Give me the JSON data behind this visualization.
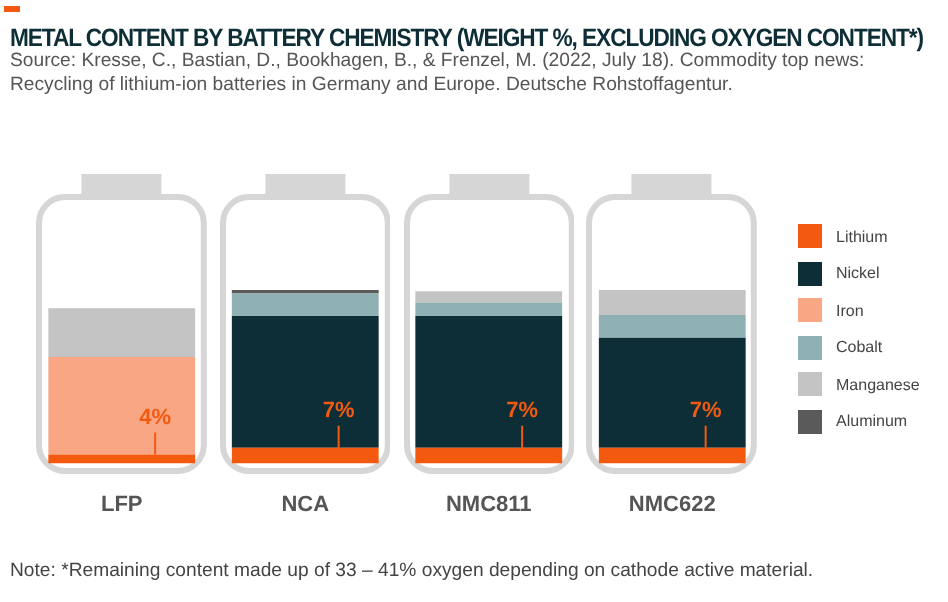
{
  "chart_data": {
    "type": "bar",
    "title": "METAL CONTENT BY BATTERY CHEMISTRY (WEIGHT %, EXCLUDING OXYGEN CONTENT*)",
    "subtitle": "Source: Kresse, C., Bastian, D., Bookhagen, B., & Frenzel, M. (2022, July 18). Commodity top news: Recycling of lithium-ion batteries in Germany and Europe. Deutsche Rohstoffagentur.",
    "annotations": [
      "Note: *Remaining content made up of 33 – 41% oxygen depending on cathode active material."
    ],
    "categories": [
      "LFP",
      "NCA",
      "NMC811",
      "NMC622"
    ],
    "stacked": true,
    "tick_labels": "x",
    "grid": false,
    "legend": "right",
    "series": [
      {
        "name": "Lithium",
        "color": "#f35a10",
        "values": [
          4,
          7,
          7,
          7
        ],
        "value_labels": [
          "4%",
          "7%",
          "7%",
          "7%"
        ]
      },
      {
        "name": "Nickel",
        "color": "#0d2e36",
        "values": [
          null,
          58,
          58,
          48.5
        ]
      },
      {
        "name": "Iron",
        "color": "#f8a683",
        "values": [
          43,
          null,
          null,
          null
        ]
      },
      {
        "name": "Cobalt",
        "color": "#8fb1b4",
        "values": [
          null,
          10,
          6,
          10
        ]
      },
      {
        "name": "Manganese",
        "color": "#c4c4c4",
        "values": [
          21.5,
          null,
          5,
          11
        ]
      },
      {
        "name": "Aluminum",
        "color": "#5a5a5a",
        "values": [
          null,
          1.5,
          null,
          null
        ]
      }
    ]
  }
}
